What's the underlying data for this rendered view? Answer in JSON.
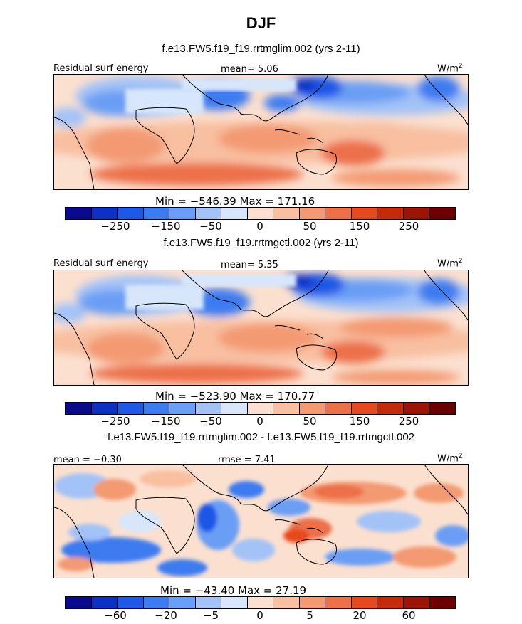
{
  "title": "DJF",
  "colorbar_colors": [
    "#0a0a8c",
    "#0d30c4",
    "#1f57e6",
    "#3c7cf0",
    "#6b9ef5",
    "#a3c3f7",
    "#d7e6fa",
    "#fbe0cf",
    "#f8bfa0",
    "#f39a72",
    "#ec7048",
    "#e6481f",
    "#c42b0b",
    "#9a1506",
    "#6b0000"
  ],
  "panels": [
    {
      "title": "f.e13.FW5.f19_f19.rrtmglim.002 (yrs 2-11)",
      "left_label": "Residual surf energy",
      "center_label": "mean=   5.06",
      "units": "W/m",
      "units_sup": "2",
      "min_max": "Min = −546.39  Max = 171.16",
      "ticks": [
        "−250",
        "−150",
        "−50",
        "0",
        "50",
        "150",
        "250"
      ]
    },
    {
      "title": "f.e13.FW5.f19_f19.rrtmgctl.002 (yrs 2-11)",
      "left_label": "Residual surf energy",
      "center_label": "mean=   5.35",
      "units": "W/m",
      "units_sup": "2",
      "min_max": "Min = −523.90  Max = 170.77",
      "ticks": [
        "−250",
        "−150",
        "−50",
        "0",
        "50",
        "150",
        "250"
      ]
    },
    {
      "title": "f.e13.FW5.f19_f19.rrtmglim.002 - f.e13.FW5.f19_f19.rrtmgctl.002",
      "left_label": "mean =  −0.30",
      "center_label": "rmse =   7.41",
      "units": "W/m",
      "units_sup": "2",
      "min_max": "Min = −43.40  Max =  27.19",
      "ticks": [
        "−60",
        "−20",
        "−5",
        "0",
        "5",
        "20",
        "60"
      ]
    }
  ],
  "chart_data": [
    {
      "type": "heatmap",
      "title": "f.e13.FW5.f19_f19.rrtmglim.002 (yrs 2-11)",
      "variable": "Residual surf energy",
      "units": "W/m2",
      "mean": 5.06,
      "min": -546.39,
      "max": 171.16,
      "colorbar_ticks": [
        -250,
        -150,
        -50,
        0,
        50,
        150,
        250
      ]
    },
    {
      "type": "heatmap",
      "title": "f.e13.FW5.f19_f19.rrtmgctl.002 (yrs 2-11)",
      "variable": "Residual surf energy",
      "units": "W/m2",
      "mean": 5.35,
      "min": -523.9,
      "max": 170.77,
      "colorbar_ticks": [
        -250,
        -150,
        -50,
        0,
        50,
        150,
        250
      ]
    },
    {
      "type": "heatmap",
      "title": "f.e13.FW5.f19_f19.rrtmglim.002 - f.e13.FW5.f19_f19.rrtmgctl.002",
      "units": "W/m2",
      "mean": -0.3,
      "rmse": 7.41,
      "min": -43.4,
      "max": 27.19,
      "colorbar_ticks": [
        -60,
        -20,
        -5,
        0,
        5,
        20,
        60
      ]
    }
  ]
}
